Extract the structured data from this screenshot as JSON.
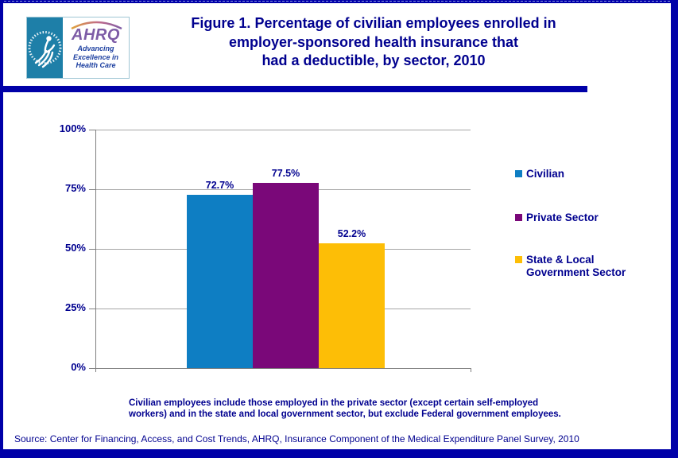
{
  "header": {
    "logo": {
      "acronym": "AHRQ",
      "tagline_lines": [
        "Advancing",
        "Excellence in",
        "Health Care"
      ]
    },
    "title_lines": [
      "Figure 1. Percentage of civilian employees enrolled in",
      "employer-sponsored health insurance that",
      "had a deductible, by sector, 2010"
    ]
  },
  "chart_data": {
    "type": "bar",
    "title": "Figure 1. Percentage of civilian employees enrolled in employer-sponsored health insurance that had a deductible, by sector, 2010",
    "categories": [
      "Civilian",
      "Private Sector",
      "State & Local Government Sector"
    ],
    "values": [
      72.7,
      77.5,
      52.2
    ],
    "value_labels": [
      "72.7%",
      "77.5%",
      "52.2%"
    ],
    "colors": [
      "#0E7EC3",
      "#7A0879",
      "#FDBE06"
    ],
    "xlabel": "",
    "ylabel": "",
    "ylim": [
      0,
      100
    ],
    "ytick_values": [
      0,
      25,
      50,
      75,
      100
    ],
    "ytick_labels": [
      "0%",
      "25%",
      "50%",
      "75%",
      "100%"
    ],
    "grid": true,
    "legend_position": "right",
    "legend_labels": [
      "Civilian",
      "Private Sector",
      "State & Local\nGovernment Sector"
    ]
  },
  "note_lines": [
    "Civilian  employees include  those employed in the private sector (except certain self-employed",
    "workers) and in  the state and local government sector, but exclude Federal government employees."
  ],
  "source": "Source: Center for Financing, Access, and Cost Trends, AHRQ,  Insurance Component of the Medical Expenditure Panel Survey,  2010",
  "colors": {
    "accent_navy": "#0000A8",
    "text_navy": "#00008F",
    "grid_gray": "#A6A6A6"
  }
}
